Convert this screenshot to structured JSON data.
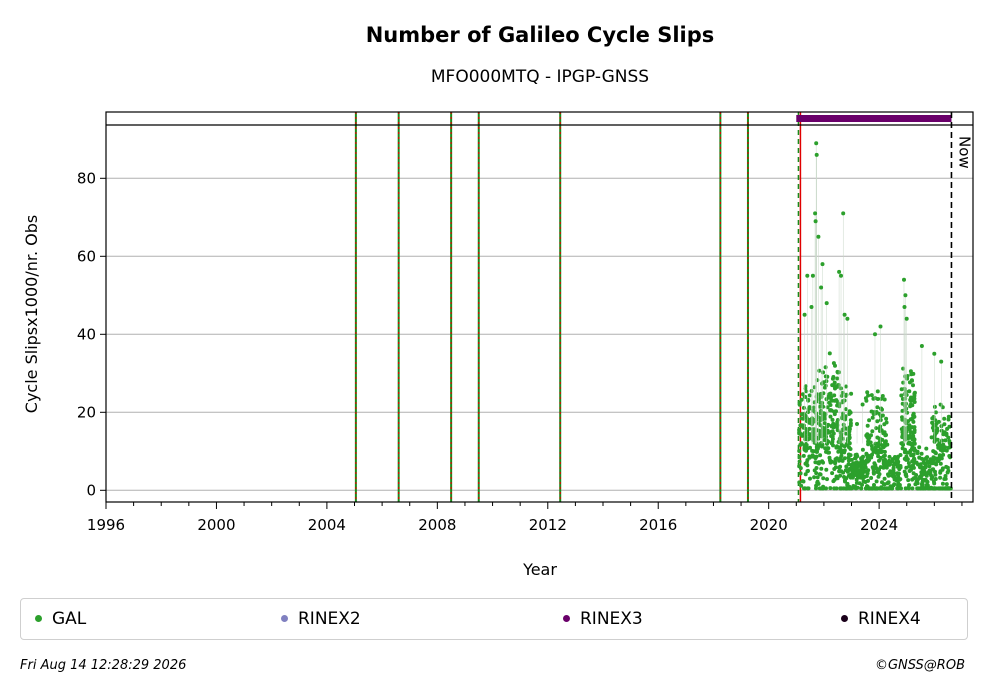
{
  "chart_data": {
    "type": "scatter",
    "title": "Number of Galileo Cycle Slips",
    "subtitle": "MFO000MTQ - IPGP-GNSS",
    "xlabel": "Year",
    "ylabel": "Cycle Slipsx1000/nr. Obs",
    "xlim": [
      1996.0,
      2027.4
    ],
    "ylim": [
      -3,
      97
    ],
    "x_ticks": [
      1996,
      2000,
      2004,
      2008,
      2012,
      2016,
      2020,
      2024
    ],
    "y_ticks": [
      0,
      20,
      40,
      60,
      80
    ],
    "grid": "horizontal",
    "event_lines_year": [
      2005.05,
      2006.6,
      2008.5,
      2009.5,
      2012.45,
      2018.25,
      2019.25
    ],
    "data_start_year": 2021.15,
    "now_year": 2026.62,
    "now_label": "Now",
    "rinex3_bar": {
      "from": 2021.0,
      "to": 2026.62
    },
    "series": [
      {
        "name": "GAL",
        "color": "#2ca02c",
        "segments": [
          {
            "from": 2021.1,
            "to": 2021.9,
            "base": 14,
            "spread": 18,
            "count": 190
          },
          {
            "from": 2021.9,
            "to": 2022.55,
            "base": 16,
            "spread": 20,
            "count": 150
          },
          {
            "from": 2022.55,
            "to": 2023.0,
            "base": 12,
            "spread": 18,
            "count": 110
          },
          {
            "from": 2023.0,
            "to": 2023.5,
            "base": 5,
            "spread": 6,
            "count": 80
          },
          {
            "from": 2023.5,
            "to": 2024.3,
            "base": 10,
            "spread": 18,
            "count": 170
          },
          {
            "from": 2024.3,
            "to": 2024.8,
            "base": 4,
            "spread": 6,
            "count": 70
          },
          {
            "from": 2024.8,
            "to": 2025.3,
            "base": 14,
            "spread": 18,
            "count": 150
          },
          {
            "from": 2025.3,
            "to": 2025.9,
            "base": 4,
            "spread": 8,
            "count": 90
          },
          {
            "from": 2025.9,
            "to": 2026.6,
            "base": 8,
            "spread": 16,
            "count": 140
          }
        ],
        "peaks": [
          [
            2021.72,
            89
          ],
          [
            2021.74,
            86
          ],
          [
            2021.68,
            71
          ],
          [
            2021.7,
            69
          ],
          [
            2021.8,
            65
          ],
          [
            2022.7,
            71
          ],
          [
            2021.4,
            55
          ],
          [
            2021.6,
            55
          ],
          [
            2021.95,
            58
          ],
          [
            2022.55,
            56
          ],
          [
            2022.62,
            55
          ],
          [
            2024.05,
            42
          ],
          [
            2022.85,
            44
          ],
          [
            2023.85,
            40
          ],
          [
            2024.9,
            54
          ],
          [
            2024.95,
            50
          ],
          [
            2024.92,
            47
          ],
          [
            2025.0,
            44
          ],
          [
            2026.0,
            35
          ],
          [
            2026.25,
            33
          ],
          [
            2021.3,
            45
          ],
          [
            2021.55,
            47
          ],
          [
            2021.9,
            52
          ],
          [
            2022.1,
            48
          ],
          [
            2022.75,
            45
          ],
          [
            2025.55,
            37
          ],
          [
            2023.2,
            17
          ],
          [
            2023.4,
            22
          ]
        ]
      }
    ],
    "legend": [
      {
        "label": "GAL",
        "color": "#2ca02c"
      },
      {
        "label": "RINEX2",
        "color": "#8080c0"
      },
      {
        "label": "RINEX3",
        "color": "#6a006a"
      },
      {
        "label": "RINEX4",
        "color": "#1a001a"
      }
    ]
  },
  "footer": {
    "timestamp": "Fri Aug 14 12:28:29 2026",
    "credit": "©GNSS@ROB"
  }
}
